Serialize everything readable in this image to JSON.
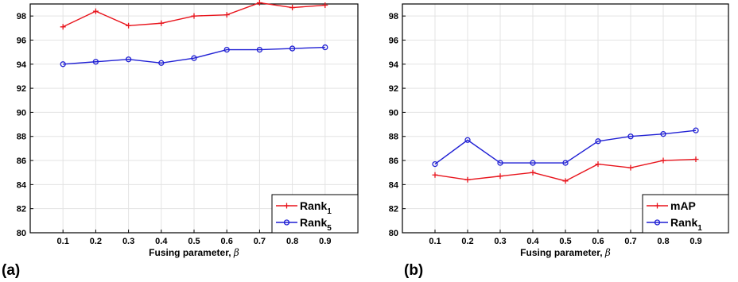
{
  "figure": {
    "panels": [
      {
        "label": "(a)",
        "xlabel": "Fusing parameter, ",
        "xlabel_symbol": "β",
        "legend": [
          {
            "name": "Rank",
            "sub": "1"
          },
          {
            "name": "Rank",
            "sub": "5"
          }
        ]
      },
      {
        "label": "(b)",
        "xlabel": "Fusing parameter, ",
        "xlabel_symbol": "β",
        "legend": [
          {
            "name": "mAP",
            "sub": ""
          },
          {
            "name": "Rank",
            "sub": "1"
          }
        ]
      }
    ]
  },
  "chart_data": [
    {
      "type": "line",
      "title": "",
      "xlabel": "Fusing parameter, β",
      "ylabel": "",
      "x": [
        0.1,
        0.2,
        0.3,
        0.4,
        0.5,
        0.6,
        0.7,
        0.8,
        0.9
      ],
      "xlim": [
        0,
        1.0
      ],
      "ylim": [
        80,
        99
      ],
      "yticks": [
        80,
        82,
        84,
        86,
        88,
        90,
        92,
        94,
        96,
        98
      ],
      "grid": true,
      "legend_position": "bottom-right",
      "series": [
        {
          "name": "Rank1",
          "color": "#e8141c",
          "marker": "plus",
          "values": [
            97.1,
            98.4,
            97.2,
            97.4,
            98.0,
            98.1,
            99.1,
            98.7,
            98.9
          ]
        },
        {
          "name": "Rank5",
          "color": "#1f1fd4",
          "marker": "circle",
          "values": [
            94.0,
            94.2,
            94.4,
            94.1,
            94.5,
            95.2,
            95.2,
            95.3,
            95.4
          ]
        }
      ]
    },
    {
      "type": "line",
      "title": "",
      "xlabel": "Fusing parameter, β",
      "ylabel": "",
      "x": [
        0.1,
        0.2,
        0.3,
        0.4,
        0.5,
        0.6,
        0.7,
        0.8,
        0.9
      ],
      "xlim": [
        0,
        1.0
      ],
      "ylim": [
        80,
        99
      ],
      "yticks": [
        80,
        82,
        84,
        86,
        88,
        90,
        92,
        94,
        96,
        98
      ],
      "grid": true,
      "legend_position": "bottom-right",
      "series": [
        {
          "name": "mAP",
          "color": "#e8141c",
          "marker": "plus",
          "values": [
            84.8,
            84.4,
            84.7,
            85.0,
            84.3,
            85.7,
            85.4,
            86.0,
            86.1
          ]
        },
        {
          "name": "Rank1",
          "color": "#1f1fd4",
          "marker": "circle",
          "values": [
            85.7,
            87.7,
            85.8,
            85.8,
            85.8,
            87.6,
            88.0,
            88.2,
            88.5
          ]
        }
      ]
    }
  ]
}
